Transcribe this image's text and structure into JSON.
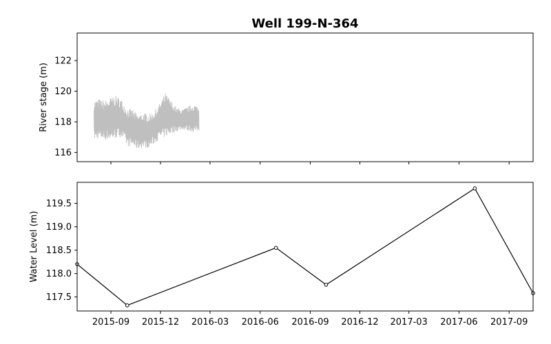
{
  "chart_data": [
    {
      "type": "line",
      "title": "Well 199-N-364",
      "ylabel": "River stage (m)",
      "xlabel": "",
      "series": [
        {
          "color": "#bfbfbf",
          "x": [
            "2015-08-01",
            "2015-08-10",
            "2015-08-20",
            "2015-09-01",
            "2015-09-10",
            "2015-09-20",
            "2015-10-01",
            "2015-10-10",
            "2015-10-20",
            "2015-11-01",
            "2015-11-10",
            "2015-11-20",
            "2015-12-01",
            "2015-12-10",
            "2015-12-20",
            "2016-01-01",
            "2016-01-10",
            "2016-01-20",
            "2016-02-01",
            "2016-02-10"
          ],
          "low": [
            116.8,
            116.9,
            116.8,
            116.8,
            116.9,
            117.0,
            116.4,
            116.4,
            116.2,
            116.3,
            116.3,
            116.6,
            116.9,
            117.0,
            117.2,
            117.4,
            117.5,
            117.4,
            117.3,
            117.4
          ],
          "high": [
            119.4,
            119.5,
            119.4,
            119.6,
            119.7,
            119.5,
            118.9,
            118.8,
            118.5,
            118.6,
            118.5,
            118.7,
            119.3,
            119.9,
            119.4,
            118.9,
            118.8,
            119.0,
            119.2,
            118.9
          ]
        }
      ],
      "x_range": [
        "2015-07-01",
        "2017-10-15"
      ],
      "x_ticks": [
        "2015-09",
        "2015-12",
        "2016-03",
        "2016-06",
        "2016-09",
        "2016-12",
        "2017-03",
        "2017-06",
        "2017-09"
      ],
      "ylim": [
        115.4,
        123.8
      ],
      "y_ticks": [
        116,
        118,
        120,
        122
      ],
      "y_tick_labels": [
        "116",
        "118",
        "120",
        "122"
      ],
      "grid": false
    },
    {
      "type": "line",
      "ylabel": "Water Level (m)",
      "xlabel": "",
      "series": [
        {
          "color": "#000000",
          "marker": "circle-open",
          "x": [
            "2015-07-01",
            "2015-10-01",
            "2016-06-30",
            "2016-09-30",
            "2017-06-30",
            "2017-10-15"
          ],
          "y": [
            118.2,
            117.32,
            118.55,
            117.76,
            119.82,
            117.58
          ]
        }
      ],
      "x_range": [
        "2015-07-01",
        "2017-10-15"
      ],
      "x_ticks": [
        "2015-09",
        "2015-12",
        "2016-03",
        "2016-06",
        "2016-09",
        "2016-12",
        "2017-03",
        "2017-06",
        "2017-09"
      ],
      "x_tick_labels": [
        "2015-09",
        "2015-12",
        "2016-03",
        "2016-06",
        "2016-09",
        "2016-12",
        "2017-03",
        "2017-06",
        "2017-09"
      ],
      "ylim": [
        117.2,
        119.95
      ],
      "y_ticks": [
        117.5,
        118.0,
        118.5,
        119.0,
        119.5
      ],
      "y_tick_labels": [
        "117.5",
        "118.0",
        "118.5",
        "119.0",
        "119.5"
      ],
      "grid": false
    }
  ]
}
